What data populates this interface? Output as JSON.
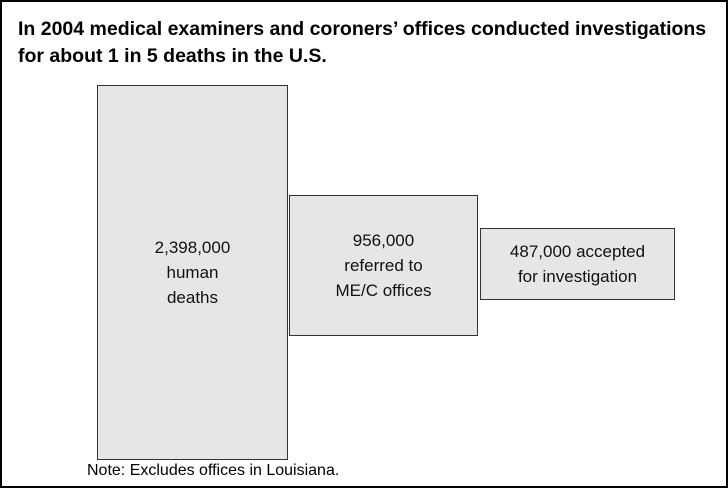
{
  "title": "In 2004 medical examiners and coroners’ offices conducted investigations for about 1 in 5 deaths in the U.S.",
  "boxes": [
    {
      "lines": [
        "2,398,000",
        "human",
        "deaths"
      ]
    },
    {
      "lines": [
        "956,000",
        "referred to",
        "ME/C offices"
      ]
    },
    {
      "lines": [
        "487,000 accepted",
        "for investigation"
      ]
    }
  ],
  "note": "Note: Excludes offices in Louisiana."
}
